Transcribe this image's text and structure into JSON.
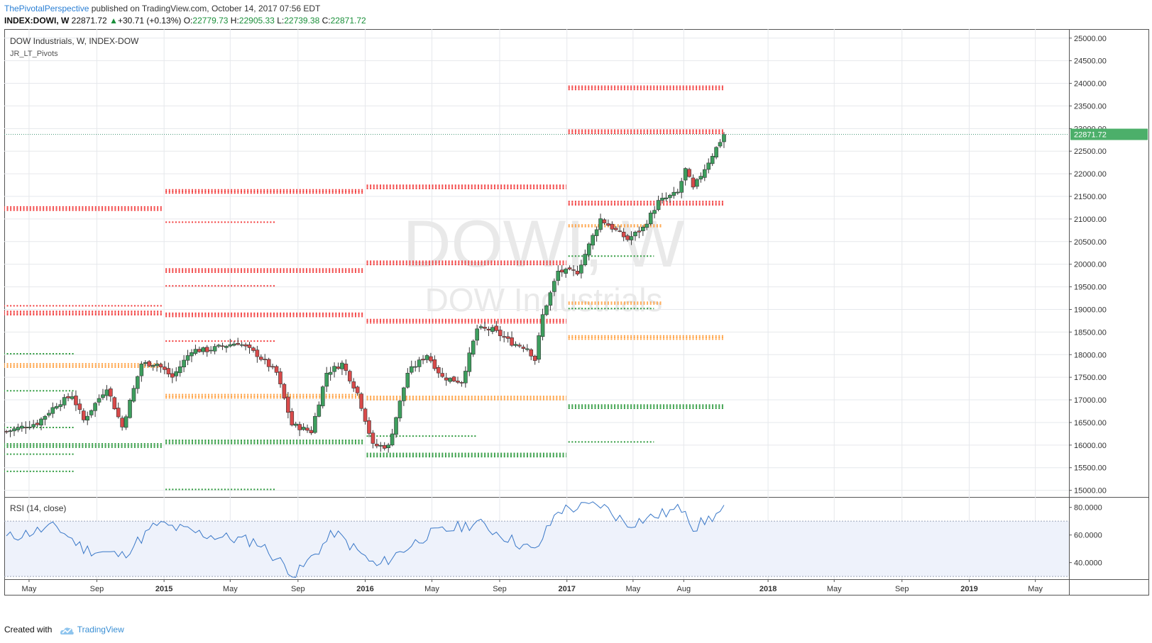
{
  "header": {
    "publisher": "ThePivotalPerspective",
    "published_text": " published on TradingView.com, October 14, 2017 07:56 EDT",
    "symbol": "INDEX:DOWI, W",
    "last": "22871.72",
    "change_icon": "up-triangle-icon",
    "change": "+30.71 (+0.13%)",
    "o_label": "O:",
    "o": "22779.73",
    "h_label": "H:",
    "h": "22905.33",
    "l_label": "L:",
    "l": "22739.38",
    "c_label": "C:",
    "c": "22871.72"
  },
  "legend": {
    "title": "DOW Industrials, W, INDEX-DOW",
    "indicator": "JR_LT_Pivots",
    "watermark_symbol": "DOWI, W",
    "watermark_name": "DOW Industrials"
  },
  "price_axis_labels": [
    "25000.00",
    "24500.00",
    "24000.00",
    "23500.00",
    "23000.00",
    "22500.00",
    "22000.00",
    "21500.00",
    "21000.00",
    "20500.00",
    "20000.00",
    "19500.00",
    "19000.00",
    "18500.00",
    "18000.00",
    "17500.00",
    "17000.00",
    "16500.00",
    "16000.00",
    "15500.00",
    "15000.00"
  ],
  "last_price_label": "22871.72",
  "rsi": {
    "label": "RSI (14, close)",
    "axis_labels": [
      "80.0000",
      "60.0000",
      "40.0000"
    ]
  },
  "time_axis_labels": [
    "May",
    "Sep",
    "2015",
    "May",
    "Sep",
    "2016",
    "May",
    "Sep",
    "2017",
    "May",
    "Aug",
    "2018",
    "May",
    "Sep",
    "2019",
    "May"
  ],
  "footer": {
    "created_with": "Created with",
    "brand": "TradingView",
    "logo_icon": "tradingview-cloud-icon"
  },
  "colors": {
    "up": "#3d9e5e",
    "down": "#d84a4a",
    "pivot_red": "#f23c3c",
    "pivot_orange": "#ffa040",
    "pivot_green": "#2e9a3e",
    "rsi_line": "#3a78c8",
    "rsi_band": "#eef2fb",
    "last_price_bg": "#4caf6a"
  },
  "chart_data": {
    "type": "candlestick",
    "title": "DOW Industrials, W, INDEX-DOW",
    "interval": "weekly",
    "ylim": [
      14900,
      25200
    ],
    "x_range": [
      "2014-03-17",
      "2019-07-01"
    ],
    "x_ticks": [
      "2014-05-01",
      "2014-09-01",
      "2015-01-01",
      "2015-05-01",
      "2015-09-01",
      "2016-01-01",
      "2016-05-01",
      "2016-09-01",
      "2017-01-01",
      "2017-05-01",
      "2017-08-01",
      "2018-01-01",
      "2018-05-01",
      "2018-09-01",
      "2019-01-01",
      "2019-05-01"
    ],
    "closes_approx": [
      {
        "date": "2014-03-21",
        "close": 16300
      },
      {
        "date": "2014-04-18",
        "close": 16400
      },
      {
        "date": "2014-05-16",
        "close": 16490
      },
      {
        "date": "2014-06-20",
        "close": 16900
      },
      {
        "date": "2014-07-18",
        "close": 17100
      },
      {
        "date": "2014-08-08",
        "close": 16550
      },
      {
        "date": "2014-09-19",
        "close": 17280
      },
      {
        "date": "2014-10-17",
        "close": 16400
      },
      {
        "date": "2014-11-21",
        "close": 17800
      },
      {
        "date": "2014-12-19",
        "close": 17800
      },
      {
        "date": "2015-01-16",
        "close": 17500
      },
      {
        "date": "2015-02-20",
        "close": 18100
      },
      {
        "date": "2015-03-20",
        "close": 18100
      },
      {
        "date": "2015-05-15",
        "close": 18270
      },
      {
        "date": "2015-06-19",
        "close": 18000
      },
      {
        "date": "2015-07-24",
        "close": 17600
      },
      {
        "date": "2015-08-21",
        "close": 16450
      },
      {
        "date": "2015-09-25",
        "close": 16300
      },
      {
        "date": "2015-10-23",
        "close": 17600
      },
      {
        "date": "2015-11-20",
        "close": 17800
      },
      {
        "date": "2015-12-18",
        "close": 17150
      },
      {
        "date": "2016-01-15",
        "close": 15990
      },
      {
        "date": "2016-02-12",
        "close": 15970
      },
      {
        "date": "2016-03-18",
        "close": 17600
      },
      {
        "date": "2016-04-22",
        "close": 18000
      },
      {
        "date": "2016-05-20",
        "close": 17500
      },
      {
        "date": "2016-06-24",
        "close": 17400
      },
      {
        "date": "2016-07-22",
        "close": 18570
      },
      {
        "date": "2016-08-19",
        "close": 18550
      },
      {
        "date": "2016-09-23",
        "close": 18260
      },
      {
        "date": "2016-10-21",
        "close": 18150
      },
      {
        "date": "2016-11-04",
        "close": 17890
      },
      {
        "date": "2016-11-18",
        "close": 18870
      },
      {
        "date": "2016-12-16",
        "close": 19840
      },
      {
        "date": "2017-01-20",
        "close": 19830
      },
      {
        "date": "2017-02-17",
        "close": 20620
      },
      {
        "date": "2017-03-03",
        "close": 21000
      },
      {
        "date": "2017-04-21",
        "close": 20550
      },
      {
        "date": "2017-05-19",
        "close": 20800
      },
      {
        "date": "2017-06-16",
        "close": 21380
      },
      {
        "date": "2017-07-21",
        "close": 21580
      },
      {
        "date": "2017-08-04",
        "close": 22090
      },
      {
        "date": "2017-08-18",
        "close": 21670
      },
      {
        "date": "2017-09-15",
        "close": 22270
      },
      {
        "date": "2017-10-13",
        "close": 22871.72
      }
    ],
    "pivot_levels_approx": [
      {
        "start": "2014-01-01",
        "end": "2014-12-31",
        "r3": 21230,
        "r2": 18920,
        "r1_dots": 19080,
        "pivot": 17760,
        "s1": 15990,
        "s2": 15420,
        "s_dots": [
          18020,
          17200,
          16390,
          15800
        ]
      },
      {
        "start": "2015-01-01",
        "end": "2015-12-31",
        "r3": 21610,
        "r2": 19860,
        "r1": 18880,
        "pivot": 17080,
        "s1": 16070,
        "s2": 15020,
        "r_dots": [
          20930,
          19520,
          18300
        ]
      },
      {
        "start": "2016-01-01",
        "end": "2016-12-31",
        "r3": 21710,
        "r2": 20030,
        "r1": 18740,
        "pivot": 17040,
        "s1": 15780,
        "s2": 16200
      },
      {
        "start": "2017-01-01",
        "end": "2017-10-13",
        "r3": 23900,
        "r2": 22930,
        "r1": 21350,
        "pivot": 18380,
        "p_dots": [
          20850,
          19140
        ],
        "s1": 16850,
        "s2": 16070,
        "s_dots": [
          20180,
          19020
        ]
      }
    ],
    "rsi_14": {
      "ylim": [
        28,
        86
      ],
      "overbought": 70,
      "oversold": 30,
      "values_approx": [
        {
          "date": "2014-03-21",
          "value": 58
        },
        {
          "date": "2014-06-20",
          "value": 66
        },
        {
          "date": "2014-08-08",
          "value": 50
        },
        {
          "date": "2014-10-17",
          "value": 45
        },
        {
          "date": "2014-12-19",
          "value": 68
        },
        {
          "date": "2015-03-20",
          "value": 60
        },
        {
          "date": "2015-06-19",
          "value": 55
        },
        {
          "date": "2015-08-28",
          "value": 31
        },
        {
          "date": "2015-11-06",
          "value": 62
        },
        {
          "date": "2016-01-22",
          "value": 37
        },
        {
          "date": "2016-04-22",
          "value": 60
        },
        {
          "date": "2016-07-22",
          "value": 69
        },
        {
          "date": "2016-11-04",
          "value": 48
        },
        {
          "date": "2016-12-16",
          "value": 78
        },
        {
          "date": "2017-03-03",
          "value": 82
        },
        {
          "date": "2017-04-21",
          "value": 68
        },
        {
          "date": "2017-08-04",
          "value": 80
        },
        {
          "date": "2017-08-18",
          "value": 65
        },
        {
          "date": "2017-10-13",
          "value": 78
        }
      ]
    }
  }
}
